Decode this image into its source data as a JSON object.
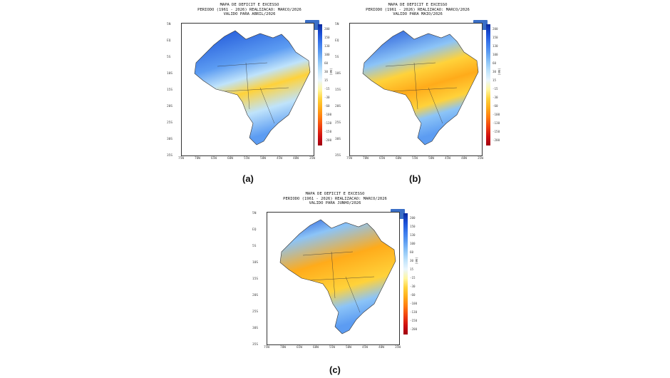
{
  "panels": [
    {
      "id": "a",
      "title": [
        "MAPA DE DEFICIT E EXCESSO",
        "PERIODO (1961 - 2026) REALIZACAO: MARCO/2026",
        "VALIDO PARA ABRIL/2026"
      ],
      "caption": "(a)"
    },
    {
      "id": "b",
      "title": [
        "MAPA DE DEFICIT E EXCESSO",
        "PERIODO (1961 - 2026) REALIZACAO: MARCO/2026",
        "VALIDO PARA MAIO/2026"
      ],
      "caption": "(b)"
    },
    {
      "id": "c",
      "title": [
        "MAPA DE DEFICIT E EXCESSO",
        "PERIODO (1961 - 2026) REALIZACAO: MARCO/2026",
        "VALIDO PARA JUNHO/2026"
      ],
      "caption": "(c)"
    }
  ],
  "y_ticks": [
    "5N",
    "EQ",
    "5S",
    "10S",
    "15S",
    "20S",
    "25S",
    "30S",
    "35S"
  ],
  "x_ticks": [
    "75W",
    "70W",
    "65W",
    "60W",
    "55W",
    "50W",
    "45W",
    "40W",
    "35W"
  ],
  "colorbar": {
    "unit": "(mm)",
    "labels": [
      "200",
      "150",
      "130",
      "100",
      "60",
      "30",
      "15",
      "-15",
      "-30",
      "-60",
      "-100",
      "-130",
      "-150",
      "-200"
    ],
    "colors": [
      "#0a2a9e",
      "#1a4fd6",
      "#3a78ec",
      "#5c9cf2",
      "#8cc4f7",
      "#bfe3fb",
      "#eaf6fd",
      "#fff6a0",
      "#ffd23a",
      "#ffab1a",
      "#ff7a10",
      "#f04010",
      "#d01010",
      "#a00010"
    ]
  }
}
